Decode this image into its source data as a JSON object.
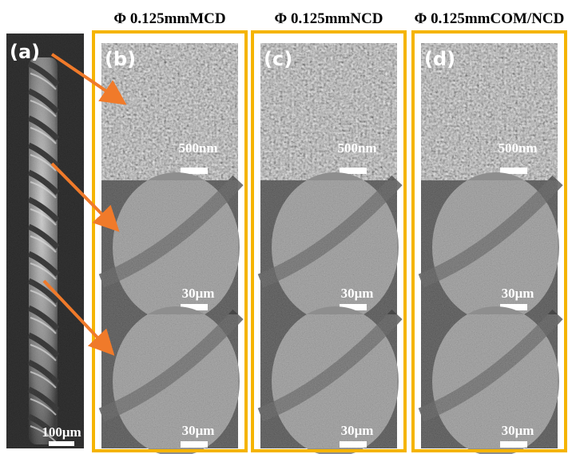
{
  "titles": [
    "Φ 0.125mmMCD",
    "Φ 0.125mmNCD",
    "Φ 0.125mmCOM/NCD"
  ],
  "panels": [
    {
      "label": "(a)",
      "scale_bars": [
        "100μm"
      ]
    },
    {
      "label": "(b)",
      "scale_bars": [
        "500nm",
        "30μm",
        "30μm"
      ]
    },
    {
      "label": "(c)",
      "scale_bars": [
        "500nm",
        "30μm",
        "30μm"
      ]
    },
    {
      "label": "(d)",
      "scale_bars": [
        "500nm",
        "30μm",
        "30μm"
      ]
    }
  ]
}
